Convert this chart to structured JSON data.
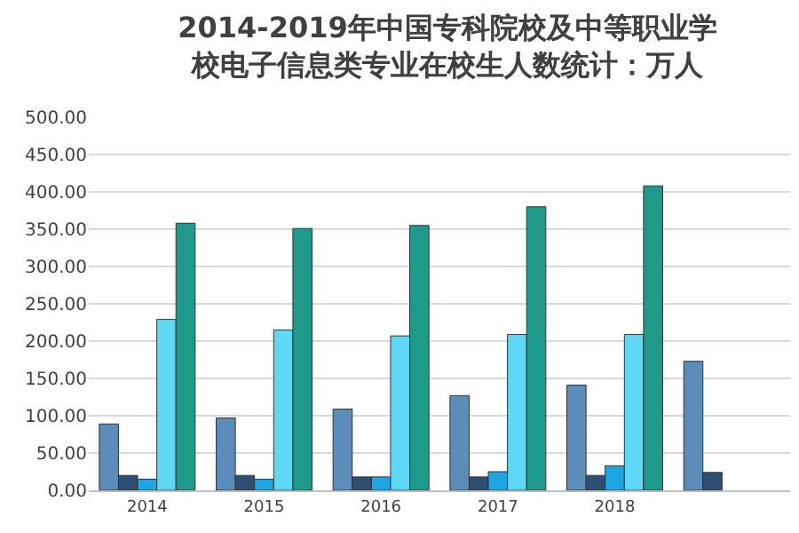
{
  "chart_data": {
    "type": "bar",
    "title": "2014-2019年中国专科院校及中等职业学校电子信息类专业在校生人数统计：万人",
    "categories": [
      "2014",
      "2015",
      "2016",
      "2017",
      "2018",
      null
    ],
    "series": [
      {
        "color": "#5b8db8",
        "values": [
          89,
          97,
          109,
          127,
          141,
          173
        ]
      },
      {
        "color": "#2d4f70",
        "values": [
          20,
          20,
          18,
          18,
          20,
          24
        ]
      },
      {
        "color": "#1ea6e0",
        "values": [
          15,
          15,
          18,
          25,
          33,
          null
        ]
      },
      {
        "color": "#5ed8f5",
        "values": [
          229,
          215,
          207,
          209,
          209,
          null
        ]
      },
      {
        "color": "#1f9a8a",
        "values": [
          358,
          351,
          355,
          380,
          408,
          null
        ]
      }
    ],
    "ylim": [
      0,
      500
    ],
    "yticks": [
      {
        "value": 0,
        "label": "0.00"
      },
      {
        "value": 50,
        "label": "50.00"
      },
      {
        "value": 100,
        "label": "100.00"
      },
      {
        "value": 150,
        "label": "150.00"
      },
      {
        "value": 200,
        "label": "200.00"
      },
      {
        "value": 250,
        "label": "250.00"
      },
      {
        "value": 300,
        "label": "300.00"
      },
      {
        "value": 350,
        "label": "350.00"
      },
      {
        "value": 400,
        "label": "400.00"
      },
      {
        "value": 450,
        "label": "450.00"
      },
      {
        "value": 500,
        "label": "500.00"
      }
    ],
    "grid": "y"
  }
}
